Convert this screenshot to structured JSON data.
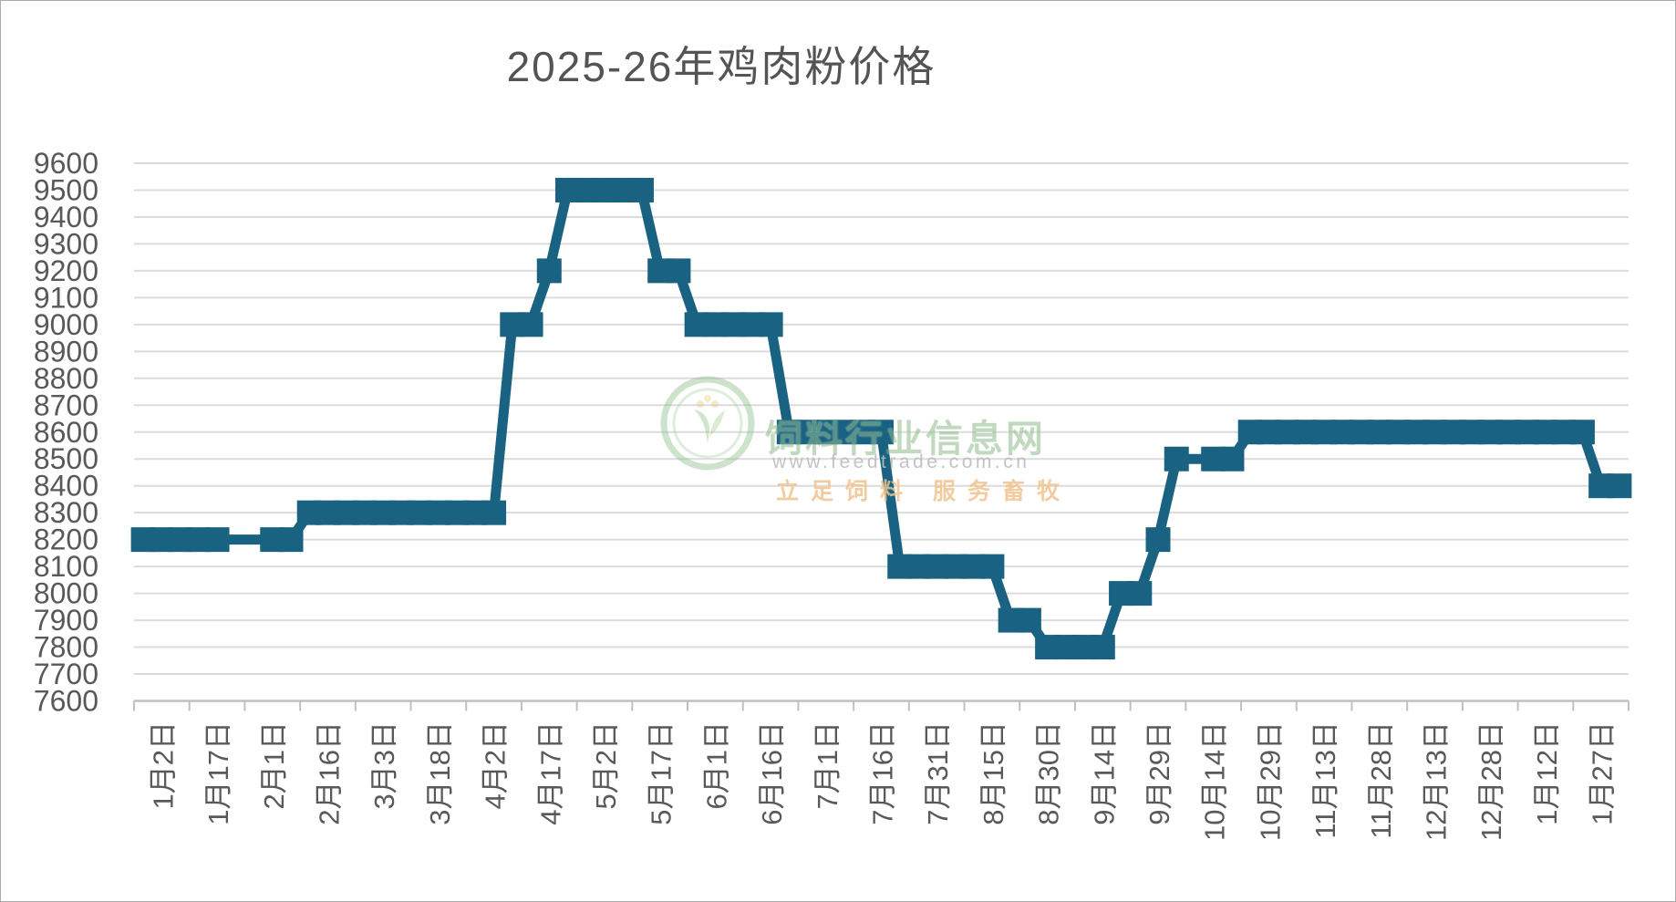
{
  "page": {
    "background": "#ffffff",
    "border_color": "#ababab"
  },
  "chart": {
    "title": "2025-26年鸡肉粉价格",
    "title_color": "#545454",
    "line_color": "#1a6282",
    "gridline_color": "#dcdcdc",
    "axis_color": "#c0c0c0",
    "tick_label_color": "#595959"
  },
  "watermark": {
    "logo_icon": "green-ring-sprout-logo",
    "title": "饲料行业信息网",
    "url": "www.feedtrade.com.cn",
    "tagline": "立足饲料  服务畜牧",
    "title_color": "#8fbd8c",
    "url_color": "#bdbdbd",
    "tagline_color": "#f0c48e"
  },
  "chart_data": {
    "type": "line",
    "subtype": "step-line-with-square-markers",
    "title": "2025-26年鸡肉粉价格",
    "ylim": [
      7600,
      9600
    ],
    "ytick_step": 100,
    "yticks": [
      9600,
      9500,
      9400,
      9300,
      9200,
      9100,
      9000,
      8900,
      8800,
      8700,
      8600,
      8500,
      8400,
      8300,
      8200,
      8100,
      8000,
      7900,
      7800,
      7700,
      7600
    ],
    "grid": true,
    "legend": false,
    "xlabel": "",
    "ylabel": "",
    "categories": [
      "1月2日",
      "1月17日",
      "2月1日",
      "2月16日",
      "3月3日",
      "3月18日",
      "4月2日",
      "4月17日",
      "5月2日",
      "5月17日",
      "6月1日",
      "6月16日",
      "7月1日",
      "7月16日",
      "7月31日",
      "8月15日",
      "8月30日",
      "9月14日",
      "9月29日",
      "10月14日",
      "10月29日",
      "11月13日",
      "11月28日",
      "12月13日",
      "12月28日",
      "1月12日",
      "1月27日"
    ],
    "values_at_labels": [
      8200,
      8200,
      8200,
      8300,
      8300,
      8300,
      8300,
      9200,
      9500,
      9200,
      9000,
      9000,
      8600,
      8600,
      8100,
      8100,
      7800,
      7800,
      8200,
      8500,
      8600,
      8600,
      8600,
      8600,
      8600,
      8600,
      8400
    ],
    "dense_series_note": "series is plotted at ~5-day intervals (3 points per labelled biweekly tick, 81 points total), run-length encoded below",
    "dense_segments": [
      {
        "value": 8200,
        "count": 9
      },
      {
        "value": 8300,
        "count": 11
      },
      {
        "value": 9000,
        "count": 2
      },
      {
        "value": 9200,
        "count": 1
      },
      {
        "value": 9500,
        "count": 5
      },
      {
        "value": 9200,
        "count": 2
      },
      {
        "value": 9000,
        "count": 5
      },
      {
        "value": 8600,
        "count": 6
      },
      {
        "value": 8100,
        "count": 6
      },
      {
        "value": 7900,
        "count": 2
      },
      {
        "value": 7800,
        "count": 4
      },
      {
        "value": 8000,
        "count": 2
      },
      {
        "value": 8200,
        "count": 1
      },
      {
        "value": 8500,
        "count": 4
      },
      {
        "value": 8600,
        "count": 19
      },
      {
        "value": 8400,
        "count": 2
      }
    ],
    "marker_gap_indices": [
      5,
      6,
      57
    ]
  }
}
